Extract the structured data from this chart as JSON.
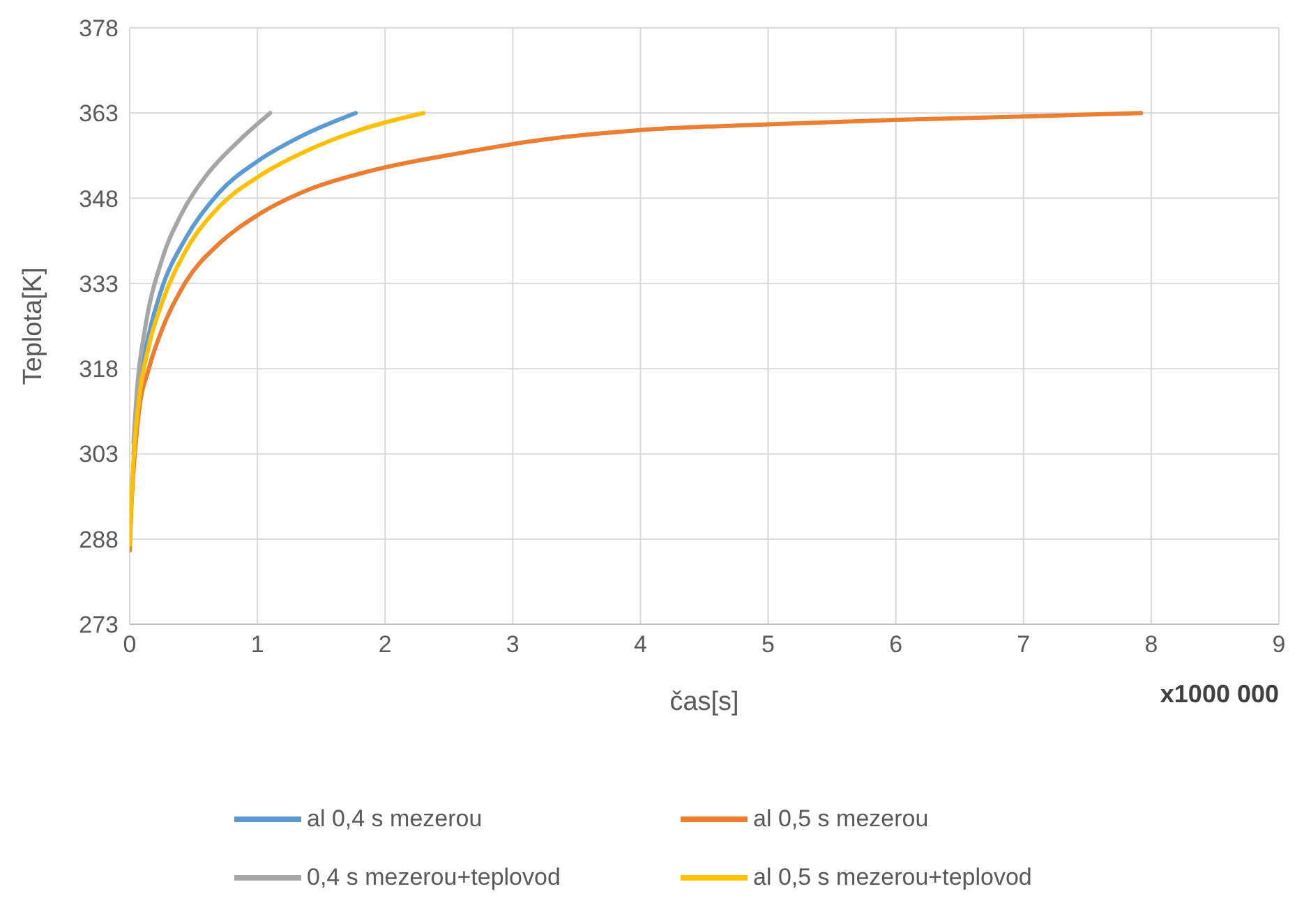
{
  "chart_data": {
    "type": "line",
    "ylabel": "Teplota[K]",
    "xlabel": "čas[s]",
    "annotations": [
      "x1000 000"
    ],
    "xlim": [
      0,
      9
    ],
    "xticks": [
      0,
      1,
      2,
      3,
      4,
      5,
      6,
      7,
      8,
      9
    ],
    "ylim": [
      273,
      378
    ],
    "yticks": [
      273,
      288,
      303,
      318,
      333,
      348,
      363,
      378
    ],
    "grid": true,
    "legend": "bottom",
    "marker": "none",
    "line_style": "solid",
    "series": [
      {
        "name": "al 0,4 s mezerou",
        "color": "#5b9bd5",
        "x": [
          0.03,
          0.07,
          0.15,
          0.25,
          0.44,
          0.7,
          1.0,
          1.35,
          1.77
        ],
        "values": [
          303,
          314,
          324,
          332,
          341,
          349,
          354.5,
          359,
          363
        ]
      },
      {
        "name": "al 0,5 s mezerou",
        "color": "#ed7d31",
        "x": [
          0,
          0.01,
          0.03,
          0.07,
          0.15,
          0.25,
          0.44,
          0.7,
          1.0,
          1.4,
          1.9,
          2.6,
          3.3,
          4.0,
          5.0,
          6.0,
          7.0,
          7.92
        ],
        "values": [
          286,
          292,
          300,
          310,
          318,
          324.7,
          333.3,
          340,
          345,
          349.5,
          352.9,
          356,
          358.5,
          360,
          361,
          361.8,
          362.4,
          363
        ]
      },
      {
        "name": "0,4 s mezerou+teplovod",
        "color": "#a5a5a5",
        "x": [
          0.03,
          0.06,
          0.12,
          0.25,
          0.4,
          0.6,
          0.85,
          1.1
        ],
        "values": [
          305,
          315,
          325,
          337,
          345,
          352,
          358,
          363
        ]
      },
      {
        "name": "al 0,5 s mezerou+teplovod",
        "color": "#ffc000",
        "x": [
          0,
          0.01,
          0.03,
          0.07,
          0.15,
          0.25,
          0.44,
          0.7,
          1.0,
          1.4,
          1.8,
          2.3
        ],
        "values": [
          287,
          293,
          302,
          312,
          322,
          329.4,
          338.8,
          346.5,
          351.7,
          356.5,
          360,
          363
        ]
      }
    ]
  }
}
